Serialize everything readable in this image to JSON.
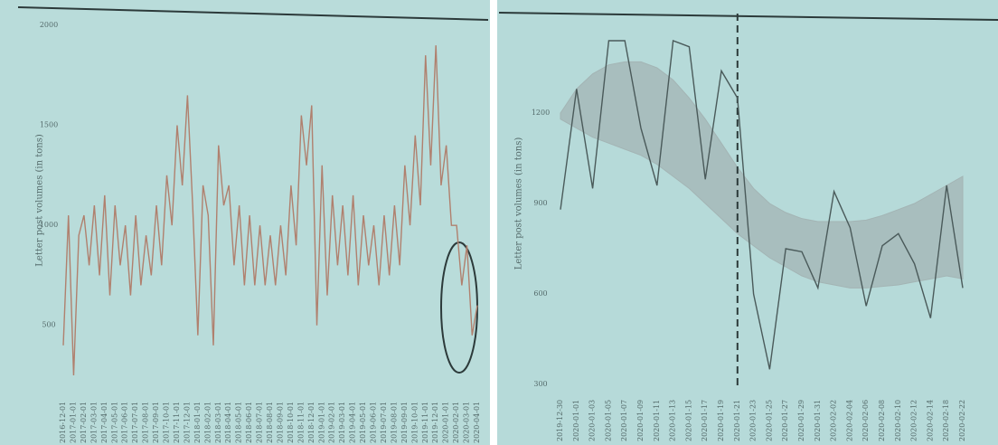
{
  "chart_data": [
    {
      "type": "line",
      "y_label": "Letter post volumes (in tons)",
      "categories": [
        "2016-12-01",
        null,
        "2017-01-01",
        null,
        "2017-02-01",
        null,
        "2017-03-01",
        null,
        "2017-04-01",
        null,
        "2017-05-01",
        null,
        "2017-06-01",
        null,
        "2017-07-01",
        null,
        "2017-08-01",
        null,
        "2017-09-01",
        null,
        "2017-10-01",
        null,
        "2017-11-01",
        null,
        "2017-12-01",
        null,
        "2018-01-01",
        null,
        "2018-02-01",
        null,
        "2018-03-01",
        null,
        "2018-04-01",
        null,
        "2018-05-01",
        null,
        "2018-06-01",
        null,
        "2018-07-01",
        null,
        "2018-08-01",
        null,
        "2018-09-01",
        null,
        "2018-10-01",
        null,
        "2018-11-01",
        null,
        "2018-12-01",
        null,
        "2019-01-01",
        null,
        "2019-02-01",
        null,
        "2019-03-01",
        null,
        "2019-04-01",
        null,
        "2019-05-01",
        null,
        "2019-06-01",
        null,
        "2019-07-01",
        null,
        "2019-08-01",
        null,
        "2019-09-01",
        null,
        "2019-10-01",
        null,
        "2019-11-01",
        null,
        "2019-12-01",
        null,
        "2020-01-01",
        null,
        "2020-02-01",
        null,
        "2020-03-01",
        null,
        "2020-04-01"
      ],
      "series": [
        {
          "color": "#b0806e",
          "values": [
            400,
            1050,
            250,
            950,
            1050,
            800,
            1100,
            750,
            1150,
            650,
            1100,
            800,
            1000,
            650,
            1050,
            700,
            950,
            750,
            1100,
            800,
            1250,
            1000,
            1500,
            1200,
            1650,
            1100,
            450,
            1200,
            1050,
            400,
            1400,
            1100,
            1200,
            800,
            1100,
            700,
            1050,
            700,
            1000,
            700,
            950,
            700,
            1000,
            750,
            1200,
            900,
            1550,
            1300,
            1600,
            500,
            1300,
            650,
            1150,
            800,
            1100,
            750,
            1150,
            700,
            1050,
            800,
            1000,
            700,
            1050,
            750,
            1100,
            800,
            1300,
            1000,
            1450,
            1100,
            1850,
            1300,
            1900,
            1200,
            1400,
            1000,
            1000,
            700,
            900,
            450,
            600
          ]
        }
      ],
      "ylim": [
        250,
        2000
      ],
      "yticks": [
        500,
        1000,
        1500,
        2000
      ]
    },
    {
      "type": "line",
      "y_label": "Letter post volumes (in tons)",
      "categories": [
        "2019-12-30",
        "2020-01-01",
        "2020-01-03",
        "2020-01-05",
        "2020-01-07",
        "2020-01-09",
        "2020-01-11",
        "2020-01-13",
        "2020-01-15",
        "2020-01-17",
        "2020-01-19",
        "2020-01-21",
        "2020-01-23",
        "2020-01-25",
        "2020-01-27",
        "2020-01-29",
        "2020-01-31",
        "2020-02-02",
        "2020-02-04",
        "2020-02-06",
        "2020-02-08",
        "2020-02-10",
        "2020-02-12",
        "2020-02-14",
        "2020-02-18",
        "2020-02-22"
      ],
      "series": [
        {
          "color": "#4a5a5a",
          "values": [
            880,
            1280,
            950,
            1440,
            1440,
            1150,
            960,
            1440,
            1420,
            980,
            1340,
            1250,
            600,
            350,
            750,
            740,
            620,
            940,
            820,
            560,
            760,
            800,
            700,
            520,
            960,
            620
          ]
        }
      ],
      "band": {
        "color": "#a3b4b4",
        "upper": [
          1200,
          1280,
          1330,
          1360,
          1370,
          1370,
          1350,
          1310,
          1250,
          1180,
          1100,
          1020,
          950,
          900,
          870,
          850,
          840,
          840,
          840,
          845,
          860,
          880,
          900,
          930,
          960,
          990
        ],
        "lower": [
          1180,
          1150,
          1120,
          1100,
          1080,
          1060,
          1030,
          990,
          950,
          900,
          850,
          800,
          760,
          720,
          690,
          660,
          640,
          630,
          620,
          620,
          625,
          630,
          640,
          650,
          660,
          650
        ]
      },
      "vline_at": "2020-01-21",
      "ylim": [
        300,
        1500
      ],
      "yticks": [
        300,
        600,
        900,
        1200
      ]
    }
  ]
}
